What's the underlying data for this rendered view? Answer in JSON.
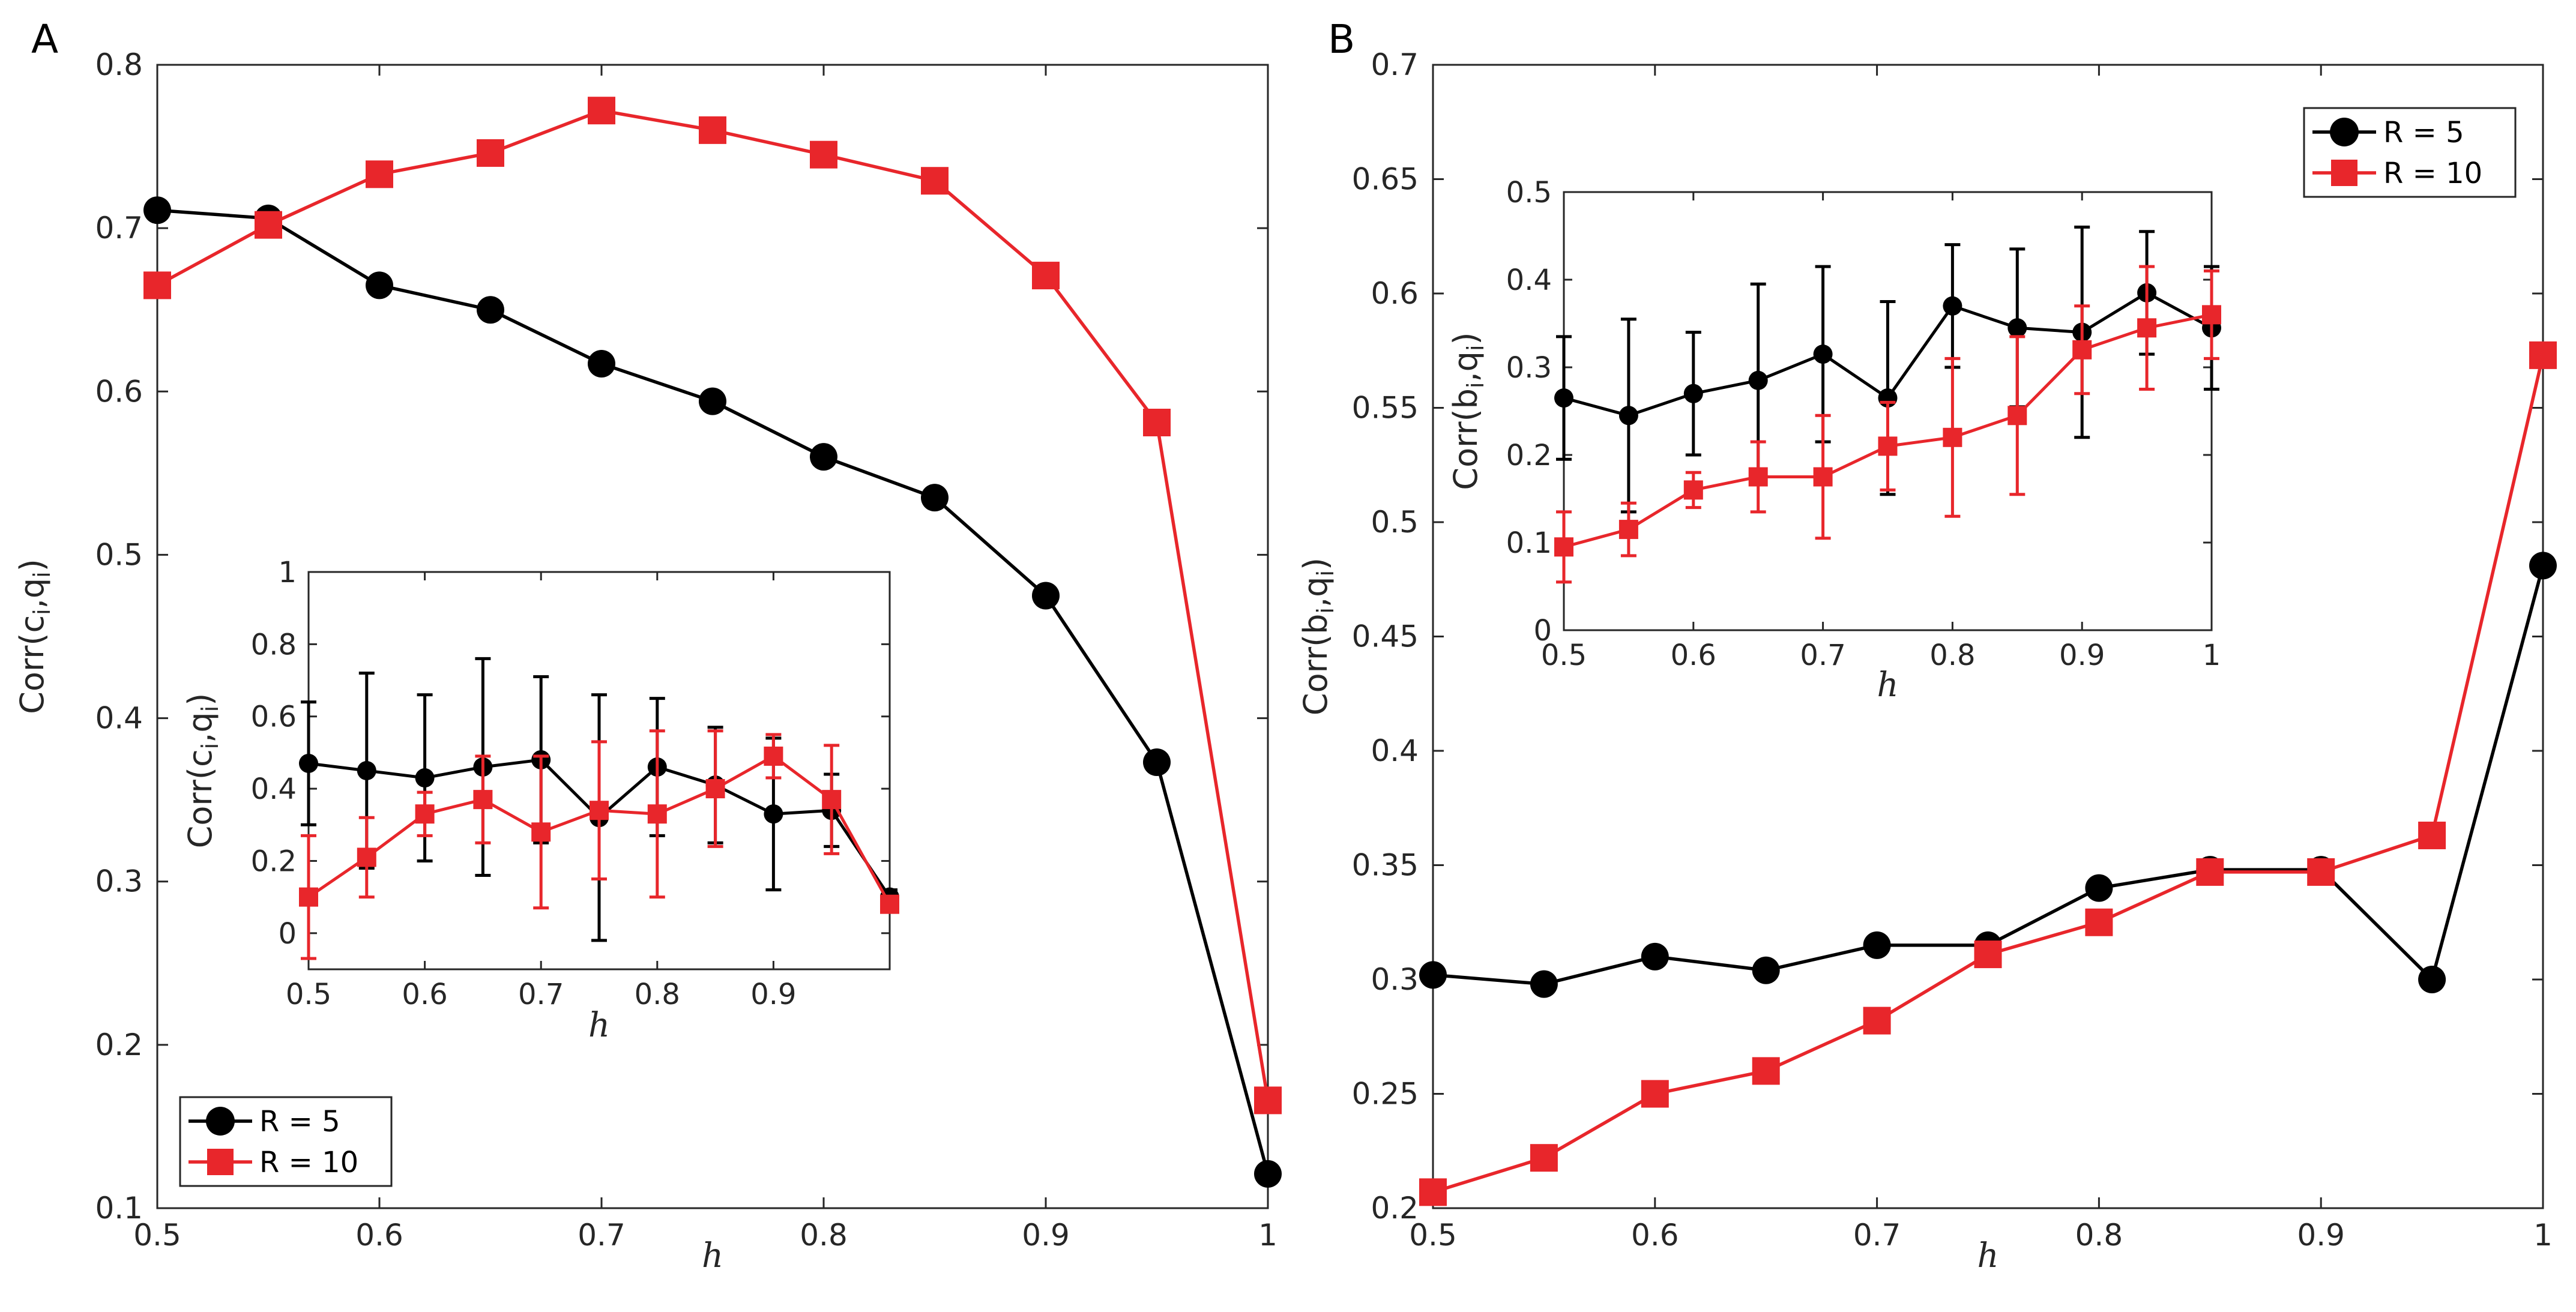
{
  "colors": {
    "series_r5": "#000000",
    "series_r10": "#e8262b",
    "axis": "#262626"
  },
  "chart_data": [
    {
      "id": "A-main",
      "panel_label": "A",
      "type": "line",
      "xlabel": "h",
      "ylabel": "Corr(c_i,q_i)",
      "xlim": [
        0.5,
        1
      ],
      "ylim": [
        0.1,
        0.8
      ],
      "xticks": [
        "0.5",
        "0.6",
        "0.7",
        "0.8",
        "0.9",
        "1"
      ],
      "yticks": [
        "0.1",
        "0.2",
        "0.3",
        "0.4",
        "0.5",
        "0.6",
        "0.7",
        "0.8"
      ],
      "legend": "bottom-left",
      "x": [
        0.5,
        0.55,
        0.6,
        0.65,
        0.7,
        0.75,
        0.8,
        0.85,
        0.9,
        0.95,
        1.0
      ],
      "series": [
        {
          "name": "R = 5",
          "marker": "circle",
          "values": [
            0.711,
            0.706,
            0.665,
            0.65,
            0.617,
            0.594,
            0.56,
            0.535,
            0.475,
            0.373,
            0.121
          ]
        },
        {
          "name": "R = 10",
          "marker": "square",
          "values": [
            0.665,
            0.702,
            0.733,
            0.746,
            0.772,
            0.76,
            0.745,
            0.729,
            0.671,
            0.581,
            0.166
          ]
        }
      ]
    },
    {
      "id": "A-inset",
      "type": "line",
      "xlabel": "h",
      "ylabel": "Corr(c_i,q_i)",
      "xlim": [
        0.5,
        1
      ],
      "ylim": [
        -0.1,
        1
      ],
      "xticks": [
        "0.5",
        "0.6",
        "0.7",
        "0.8",
        "0.9"
      ],
      "yticks": [
        "0",
        "0.2",
        "0.4",
        "0.6",
        "0.8",
        "1"
      ],
      "error_bars": true,
      "x": [
        0.5,
        0.55,
        0.6,
        0.65,
        0.7,
        0.75,
        0.8,
        0.85,
        0.9,
        0.95,
        1.0
      ],
      "series": [
        {
          "name": "R = 5",
          "values": [
            0.47,
            0.45,
            0.43,
            0.46,
            0.48,
            0.32,
            0.46,
            0.41,
            0.33,
            0.34,
            0.1
          ],
          "errors": [
            0.17,
            0.27,
            0.23,
            0.3,
            0.23,
            0.34,
            0.19,
            0.16,
            0.21,
            0.1,
            0.02
          ]
        },
        {
          "name": "R = 10",
          "values": [
            0.1,
            0.21,
            0.33,
            0.37,
            0.28,
            0.34,
            0.33,
            0.4,
            0.49,
            0.37,
            0.08
          ],
          "errors": [
            0.17,
            0.11,
            0.06,
            0.12,
            0.21,
            0.19,
            0.23,
            0.16,
            0.06,
            0.15,
            0.02
          ]
        }
      ]
    },
    {
      "id": "B-main",
      "panel_label": "B",
      "type": "line",
      "xlabel": "h",
      "ylabel": "Corr(b_i,q_i)",
      "xlim": [
        0.5,
        1
      ],
      "ylim": [
        0.2,
        0.7
      ],
      "xticks": [
        "0.5",
        "0.6",
        "0.7",
        "0.8",
        "0.9",
        "1"
      ],
      "yticks": [
        "0.2",
        "0.25",
        "0.3",
        "0.35",
        "0.4",
        "0.45",
        "0.5",
        "0.55",
        "0.6",
        "0.65",
        "0.7"
      ],
      "legend": "top-right",
      "x": [
        0.5,
        0.55,
        0.6,
        0.65,
        0.7,
        0.75,
        0.8,
        0.85,
        0.9,
        0.95,
        1.0
      ],
      "series": [
        {
          "name": "R = 5",
          "marker": "circle",
          "values": [
            0.302,
            0.298,
            0.31,
            0.304,
            0.315,
            0.315,
            0.34,
            0.348,
            0.348,
            0.3,
            0.481
          ]
        },
        {
          "name": "R = 10",
          "marker": "square",
          "values": [
            0.207,
            0.222,
            0.25,
            0.26,
            0.282,
            0.311,
            0.325,
            0.347,
            0.347,
            0.363,
            0.573
          ]
        }
      ]
    },
    {
      "id": "B-inset",
      "type": "line",
      "xlabel": "h",
      "ylabel": "Corr(b_i,q_i)",
      "xlim": [
        0.5,
        1
      ],
      "ylim": [
        0,
        0.5
      ],
      "xticks": [
        "0.5",
        "0.6",
        "0.7",
        "0.8",
        "0.9",
        "1"
      ],
      "yticks": [
        "0",
        "0.1",
        "0.2",
        "0.3",
        "0.4",
        "0.5"
      ],
      "error_bars": true,
      "x": [
        0.5,
        0.55,
        0.6,
        0.65,
        0.7,
        0.75,
        0.8,
        0.85,
        0.9,
        0.95,
        1.0
      ],
      "series": [
        {
          "name": "R = 5",
          "values": [
            0.265,
            0.245,
            0.27,
            0.285,
            0.315,
            0.265,
            0.37,
            0.345,
            0.34,
            0.385,
            0.345
          ],
          "errors": [
            0.07,
            0.11,
            0.07,
            0.11,
            0.1,
            0.11,
            0.07,
            0.09,
            0.12,
            0.07,
            0.07
          ]
        },
        {
          "name": "R = 10",
          "values": [
            0.095,
            0.115,
            0.16,
            0.175,
            0.175,
            0.21,
            0.22,
            0.245,
            0.32,
            0.345,
            0.36
          ],
          "errors": [
            0.04,
            0.03,
            0.02,
            0.04,
            0.07,
            0.05,
            0.09,
            0.09,
            0.05,
            0.07,
            0.05
          ]
        }
      ]
    }
  ]
}
